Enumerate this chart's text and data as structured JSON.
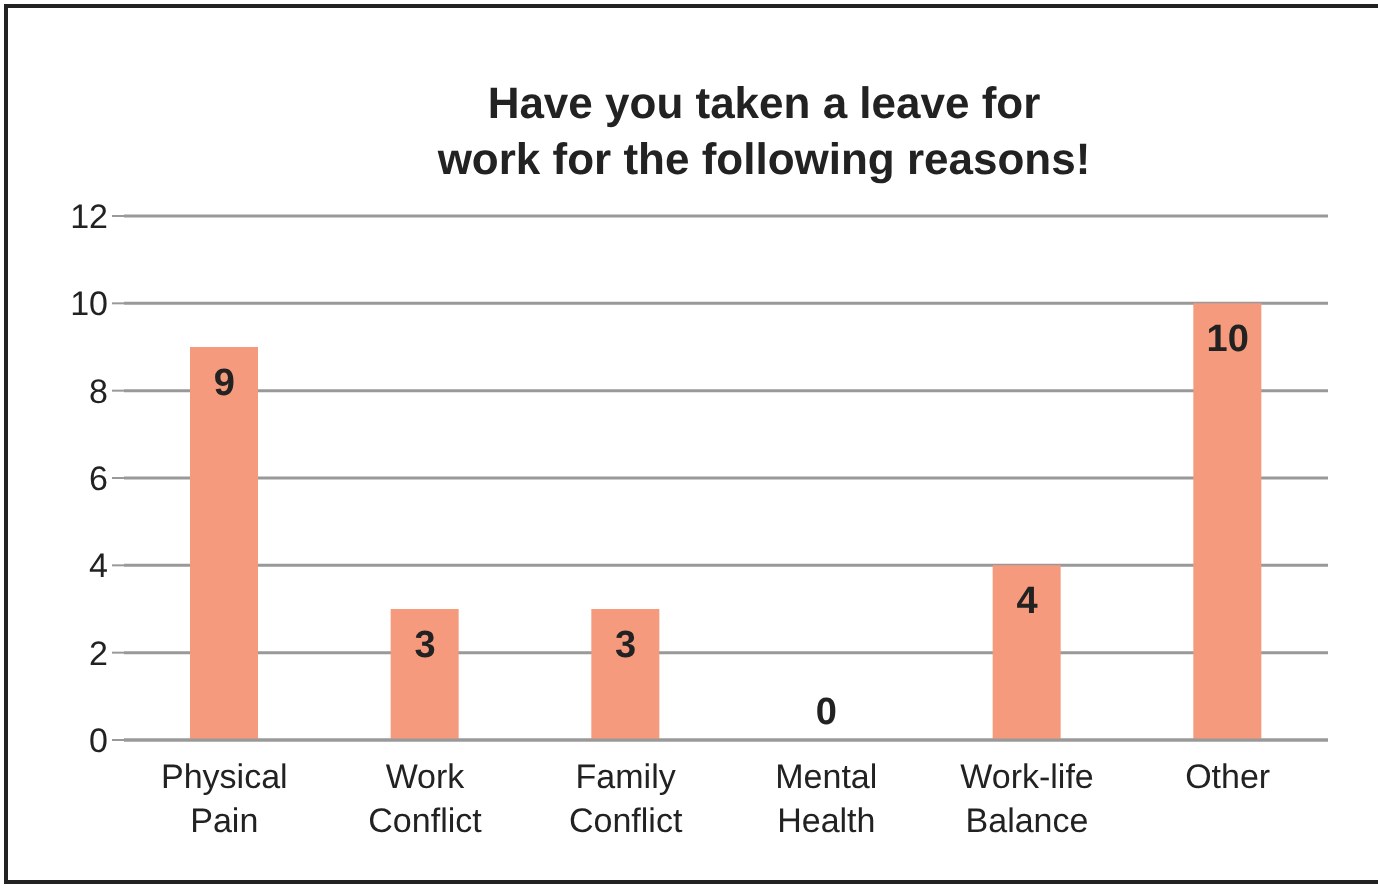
{
  "chart_data": {
    "type": "bar",
    "title": "Have you taken a leave for\nwork for the following reasons!",
    "categories": [
      "Physical Pain",
      "Work Conflict",
      "Family Conflict",
      "Mental Health",
      "Work-life Balance",
      "Other"
    ],
    "values": [
      9,
      3,
      3,
      0,
      4,
      10
    ],
    "color": "#f59a7c",
    "ylim": [
      0,
      12
    ],
    "yticks": [
      0,
      2,
      4,
      6,
      8,
      10,
      12
    ],
    "grid": "y",
    "data_labels": true
  }
}
